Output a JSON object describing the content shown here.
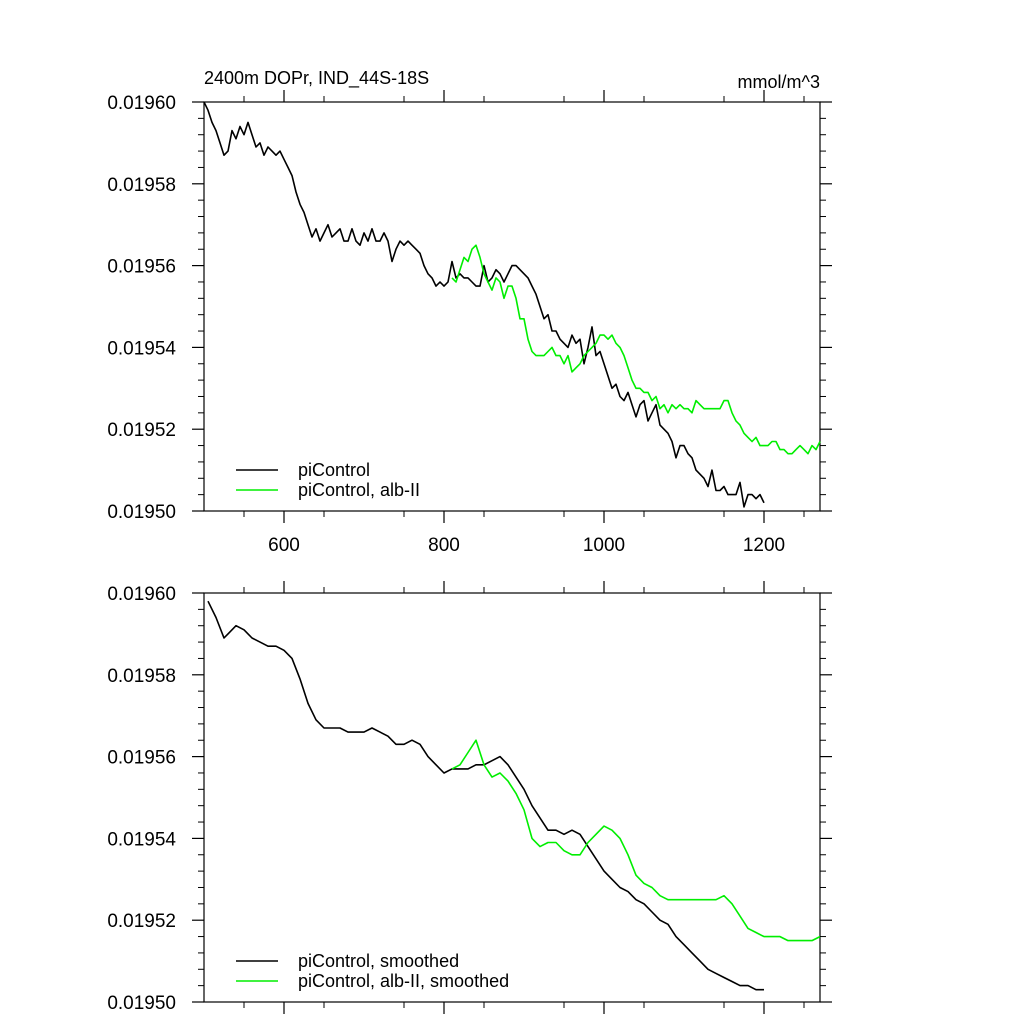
{
  "colors": {
    "piControl": "#000000",
    "alb_II": "#00ee00",
    "axis": "#000000",
    "background": "#ffffff"
  },
  "chart_data": [
    {
      "type": "line",
      "title": "2400m DOPr, IND_44S-18S",
      "units": "mmol/m^3",
      "xlim": [
        500,
        1270
      ],
      "ylim": [
        0.0195,
        0.0196
      ],
      "xticks": [
        600,
        800,
        1000,
        1200
      ],
      "xtick_labels": [
        "600",
        "800",
        "1000",
        "1200"
      ],
      "yticks": [
        0.0195,
        0.01952,
        0.01954,
        0.01956,
        0.01958,
        0.0196
      ],
      "ytick_labels": [
        "0.01950",
        "0.01952",
        "0.01954",
        "0.01956",
        "0.01958",
        "0.01960"
      ],
      "legend_position": "bottom-left",
      "series": [
        {
          "name": "piControl",
          "color": "#000000",
          "x": [
            500,
            505,
            510,
            515,
            520,
            525,
            530,
            535,
            540,
            545,
            550,
            555,
            560,
            565,
            570,
            575,
            580,
            585,
            590,
            595,
            600,
            605,
            610,
            615,
            620,
            625,
            630,
            635,
            640,
            645,
            650,
            655,
            660,
            665,
            670,
            675,
            680,
            685,
            690,
            695,
            700,
            705,
            710,
            715,
            720,
            725,
            730,
            735,
            740,
            745,
            750,
            755,
            760,
            765,
            770,
            775,
            780,
            785,
            790,
            795,
            800,
            805,
            810,
            815,
            820,
            825,
            830,
            835,
            840,
            845,
            850,
            855,
            860,
            865,
            870,
            875,
            880,
            885,
            890,
            895,
            900,
            905,
            910,
            915,
            920,
            925,
            930,
            935,
            940,
            945,
            950,
            955,
            960,
            965,
            970,
            975,
            980,
            985,
            990,
            995,
            1000,
            1005,
            1010,
            1015,
            1020,
            1025,
            1030,
            1035,
            1040,
            1045,
            1050,
            1055,
            1060,
            1065,
            1070,
            1075,
            1080,
            1085,
            1090,
            1095,
            1100,
            1105,
            1110,
            1115,
            1120,
            1125,
            1130,
            1135,
            1140,
            1145,
            1150,
            1155,
            1160,
            1165,
            1170,
            1175,
            1180,
            1185,
            1190,
            1195,
            1200
          ],
          "y": [
            0.0196,
            0.019598,
            0.019595,
            0.019593,
            0.01959,
            0.019587,
            0.019588,
            0.019593,
            0.019591,
            0.019594,
            0.019592,
            0.019595,
            0.019592,
            0.019589,
            0.01959,
            0.019587,
            0.019589,
            0.019588,
            0.019587,
            0.019588,
            0.019586,
            0.019584,
            0.019582,
            0.019578,
            0.019575,
            0.019573,
            0.01957,
            0.019567,
            0.019569,
            0.019566,
            0.019568,
            0.01957,
            0.019567,
            0.019568,
            0.019569,
            0.019566,
            0.019566,
            0.019569,
            0.019566,
            0.019565,
            0.019568,
            0.019566,
            0.019569,
            0.019566,
            0.019566,
            0.019568,
            0.019566,
            0.019561,
            0.019564,
            0.019566,
            0.019565,
            0.019566,
            0.019565,
            0.019564,
            0.019563,
            0.01956,
            0.019558,
            0.019557,
            0.019555,
            0.019556,
            0.019555,
            0.019556,
            0.019561,
            0.019557,
            0.019558,
            0.019557,
            0.019557,
            0.019556,
            0.019555,
            0.019555,
            0.01956,
            0.019556,
            0.019557,
            0.019559,
            0.019558,
            0.019556,
            0.019558,
            0.01956,
            0.01956,
            0.019559,
            0.019558,
            0.019557,
            0.019555,
            0.019553,
            0.01955,
            0.019547,
            0.019548,
            0.019544,
            0.019544,
            0.019542,
            0.019541,
            0.01954,
            0.019543,
            0.019541,
            0.019542,
            0.019536,
            0.01954,
            0.019545,
            0.019538,
            0.019539,
            0.019536,
            0.019533,
            0.01953,
            0.019531,
            0.019528,
            0.019527,
            0.019529,
            0.019526,
            0.019523,
            0.019526,
            0.019527,
            0.019522,
            0.019524,
            0.019526,
            0.019521,
            0.01952,
            0.019519,
            0.019517,
            0.019513,
            0.019516,
            0.019516,
            0.019514,
            0.019513,
            0.01951,
            0.019509,
            0.019508,
            0.019506,
            0.01951,
            0.019505,
            0.019505,
            0.019506,
            0.019504,
            0.019504,
            0.019504,
            0.019507,
            0.019501,
            0.019504,
            0.019504,
            0.019503,
            0.019504,
            0.019502
          ]
        },
        {
          "name": "piControl, alb-II",
          "color": "#00ee00",
          "x": [
            810,
            815,
            820,
            825,
            830,
            835,
            840,
            845,
            850,
            855,
            860,
            865,
            870,
            875,
            880,
            885,
            890,
            895,
            900,
            905,
            910,
            915,
            920,
            925,
            930,
            935,
            940,
            945,
            950,
            955,
            960,
            965,
            970,
            975,
            980,
            985,
            990,
            995,
            1000,
            1005,
            1010,
            1015,
            1020,
            1025,
            1030,
            1035,
            1040,
            1045,
            1050,
            1055,
            1060,
            1065,
            1070,
            1075,
            1080,
            1085,
            1090,
            1095,
            1100,
            1105,
            1110,
            1115,
            1120,
            1125,
            1130,
            1135,
            1140,
            1145,
            1150,
            1155,
            1160,
            1165,
            1170,
            1175,
            1180,
            1185,
            1190,
            1195,
            1200,
            1205,
            1210,
            1215,
            1220,
            1225,
            1230,
            1235,
            1240,
            1245,
            1250,
            1255,
            1260,
            1265,
            1270
          ],
          "y": [
            0.019557,
            0.019556,
            0.019559,
            0.019562,
            0.019561,
            0.019564,
            0.019565,
            0.019562,
            0.019558,
            0.019556,
            0.019554,
            0.019557,
            0.019556,
            0.019552,
            0.019555,
            0.019555,
            0.019552,
            0.019547,
            0.019547,
            0.019542,
            0.019539,
            0.019538,
            0.019538,
            0.019538,
            0.019539,
            0.01954,
            0.019538,
            0.019538,
            0.019536,
            0.019538,
            0.019534,
            0.019535,
            0.019536,
            0.019538,
            0.019539,
            0.01954,
            0.019541,
            0.019543,
            0.019543,
            0.019542,
            0.019543,
            0.019541,
            0.01954,
            0.019538,
            0.019535,
            0.019532,
            0.01953,
            0.01953,
            0.019529,
            0.019529,
            0.019527,
            0.019528,
            0.019525,
            0.019526,
            0.019524,
            0.019526,
            0.019525,
            0.019526,
            0.019525,
            0.019525,
            0.019524,
            0.019527,
            0.019526,
            0.019525,
            0.019525,
            0.019525,
            0.019525,
            0.019525,
            0.019527,
            0.019527,
            0.019524,
            0.019522,
            0.019521,
            0.019519,
            0.019518,
            0.019517,
            0.019518,
            0.019516,
            0.019516,
            0.019516,
            0.019517,
            0.019517,
            0.019515,
            0.019515,
            0.019514,
            0.019514,
            0.019515,
            0.019516,
            0.019515,
            0.019514,
            0.019516,
            0.019515,
            0.019517
          ]
        }
      ]
    },
    {
      "type": "line",
      "title": "",
      "units": "",
      "xlim": [
        500,
        1270
      ],
      "ylim": [
        0.0195,
        0.0196
      ],
      "xticks": [
        600,
        800,
        1000,
        1200
      ],
      "xtick_labels": [],
      "yticks": [
        0.0195,
        0.01952,
        0.01954,
        0.01956,
        0.01958,
        0.0196
      ],
      "ytick_labels": [
        "0.01950",
        "0.01952",
        "0.01954",
        "0.01956",
        "0.01958",
        "0.01960"
      ],
      "legend_position": "bottom-left",
      "series": [
        {
          "name": "piControl, smoothed",
          "color": "#000000",
          "x": [
            505,
            515,
            525,
            530,
            540,
            550,
            560,
            570,
            580,
            590,
            600,
            610,
            620,
            630,
            640,
            650,
            660,
            670,
            680,
            690,
            700,
            710,
            720,
            730,
            740,
            750,
            760,
            770,
            780,
            790,
            800,
            810,
            820,
            830,
            840,
            850,
            860,
            870,
            880,
            890,
            900,
            910,
            920,
            930,
            940,
            950,
            960,
            970,
            980,
            990,
            1000,
            1010,
            1020,
            1030,
            1040,
            1050,
            1060,
            1070,
            1080,
            1090,
            1100,
            1110,
            1120,
            1130,
            1140,
            1150,
            1160,
            1170,
            1180,
            1190,
            1200
          ],
          "y": [
            0.019598,
            0.019594,
            0.019589,
            0.01959,
            0.019592,
            0.019591,
            0.019589,
            0.019588,
            0.019587,
            0.019587,
            0.019586,
            0.019584,
            0.019579,
            0.019573,
            0.019569,
            0.019567,
            0.019567,
            0.019567,
            0.019566,
            0.019566,
            0.019566,
            0.019567,
            0.019566,
            0.019565,
            0.019563,
            0.019563,
            0.019564,
            0.019563,
            0.01956,
            0.019558,
            0.019556,
            0.019557,
            0.019557,
            0.019557,
            0.019558,
            0.019558,
            0.019559,
            0.01956,
            0.019558,
            0.019555,
            0.019552,
            0.019548,
            0.019545,
            0.019542,
            0.019542,
            0.019541,
            0.019542,
            0.019541,
            0.019538,
            0.019535,
            0.019532,
            0.01953,
            0.019528,
            0.019527,
            0.019525,
            0.019524,
            0.019522,
            0.01952,
            0.019519,
            0.019516,
            0.019514,
            0.019512,
            0.01951,
            0.019508,
            0.019507,
            0.019506,
            0.019505,
            0.019504,
            0.019504,
            0.019503,
            0.019503
          ]
        },
        {
          "name": "piControl, alb-II, smoothed",
          "color": "#00ee00",
          "x": [
            810,
            820,
            830,
            840,
            850,
            860,
            870,
            880,
            890,
            900,
            910,
            920,
            930,
            940,
            950,
            960,
            970,
            980,
            990,
            1000,
            1010,
            1020,
            1030,
            1040,
            1050,
            1060,
            1070,
            1080,
            1090,
            1100,
            1110,
            1120,
            1130,
            1140,
            1150,
            1160,
            1170,
            1180,
            1190,
            1200,
            1210,
            1220,
            1230,
            1240,
            1250,
            1260,
            1270
          ],
          "y": [
            0.019557,
            0.019558,
            0.019561,
            0.019564,
            0.019558,
            0.019555,
            0.019556,
            0.019554,
            0.019551,
            0.019547,
            0.01954,
            0.019538,
            0.019539,
            0.019539,
            0.019537,
            0.019536,
            0.019536,
            0.019539,
            0.019541,
            0.019543,
            0.019542,
            0.01954,
            0.019536,
            0.019531,
            0.019529,
            0.019528,
            0.019526,
            0.019525,
            0.019525,
            0.019525,
            0.019525,
            0.019525,
            0.019525,
            0.019525,
            0.019526,
            0.019524,
            0.019521,
            0.019518,
            0.019517,
            0.019516,
            0.019516,
            0.019516,
            0.019515,
            0.019515,
            0.019515,
            0.019515,
            0.019516
          ]
        }
      ]
    }
  ]
}
